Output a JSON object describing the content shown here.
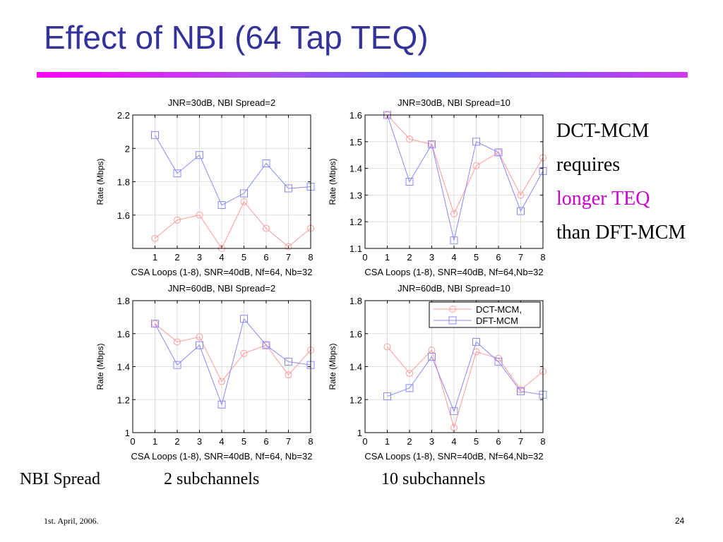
{
  "slide": {
    "title": "Effect of NBI (64 Tap TEQ)",
    "side_text": [
      "DCT-MCM",
      "requires",
      "longer TEQ",
      "than DFT-MCM"
    ],
    "bottom_labels": [
      "NBI Spread",
      "2 subchannels",
      "10 subchannels"
    ],
    "footer_date": "1st. April, 2006.",
    "page_number": "24"
  },
  "colors": {
    "title": "#333399",
    "accent_text": "#cc00cc",
    "dct_series": "#ff9999",
    "dft_series": "#8888ff"
  },
  "chart_data": [
    {
      "type": "line",
      "title": "JNR=30dB, NBI Spread=2",
      "xlabel": "CSA Loops (1-8), SNR=40dB, Nf=64, Nb=32",
      "ylabel": "Rate (Mbps)",
      "x": [
        1,
        2,
        3,
        4,
        5,
        6,
        7,
        8
      ],
      "xlim": [
        0,
        8
      ],
      "ylim": [
        1.4,
        2.2
      ],
      "yticks": [
        1.6,
        1.8,
        2,
        2.2
      ],
      "xticks": [
        1,
        2,
        3,
        4,
        5,
        6,
        7,
        8
      ],
      "grid": true,
      "series": [
        {
          "values": [
            1.46,
            1.57,
            1.6,
            1.4,
            1.68,
            1.52,
            1.41,
            1.52
          ]
        },
        {
          "values": [
            2.08,
            1.85,
            1.96,
            1.66,
            1.73,
            1.91,
            1.76,
            1.77
          ]
        }
      ]
    },
    {
      "type": "line",
      "title": "JNR=30dB, NBI Spread=10",
      "xlabel": "CSA Loops (1-8), SNR=40dB, Nf=64,Nb=32",
      "ylabel": "Rate (Mbps)",
      "x": [
        1,
        2,
        3,
        4,
        5,
        6,
        7,
        8
      ],
      "xlim": [
        0,
        8
      ],
      "ylim": [
        1.1,
        1.6
      ],
      "yticks": [
        1.1,
        1.2,
        1.3,
        1.4,
        1.5,
        1.6
      ],
      "xticks": [
        0,
        1,
        2,
        3,
        4,
        5,
        6,
        7,
        8
      ],
      "grid": true,
      "series": [
        {
          "values": [
            1.6,
            1.51,
            1.49,
            1.23,
            1.41,
            1.46,
            1.3,
            1.44
          ]
        },
        {
          "values": [
            1.6,
            1.35,
            1.49,
            1.13,
            1.5,
            1.46,
            1.24,
            1.39
          ]
        }
      ]
    },
    {
      "type": "line",
      "title": "JNR=60dB, NBI Spread=2",
      "xlabel": "CSA Loops (1-8), SNR=40dB, Nf=64, Nb=32",
      "ylabel": "Rate (Mbps)",
      "x": [
        1,
        2,
        3,
        4,
        5,
        6,
        7,
        8
      ],
      "xlim": [
        0,
        8
      ],
      "ylim": [
        1.0,
        1.8
      ],
      "yticks": [
        1,
        1.2,
        1.4,
        1.6,
        1.8
      ],
      "xticks": [
        0,
        1,
        2,
        3,
        4,
        5,
        6,
        7,
        8
      ],
      "grid": true,
      "series": [
        {
          "values": [
            1.66,
            1.55,
            1.58,
            1.31,
            1.48,
            1.53,
            1.35,
            1.5
          ]
        },
        {
          "values": [
            1.66,
            1.41,
            1.53,
            1.17,
            1.69,
            1.53,
            1.43,
            1.41
          ]
        }
      ]
    },
    {
      "type": "line",
      "title": "JNR=60dB, NBI Spread=10",
      "xlabel": "CSA Loops (1-8), SNR=40dB, Nf=64,Nb=32",
      "ylabel": "Rate (Mbps)",
      "x": [
        1,
        2,
        3,
        4,
        5,
        6,
        7,
        8
      ],
      "xlim": [
        0,
        8
      ],
      "ylim": [
        1.0,
        1.8
      ],
      "yticks": [
        1,
        1.2,
        1.4,
        1.6,
        1.8
      ],
      "xticks": [
        0,
        1,
        2,
        3,
        4,
        5,
        6,
        7,
        8
      ],
      "grid": true,
      "legend": "top-right",
      "series": [
        {
          "name": "DCT-MCM,",
          "values": [
            1.52,
            1.36,
            1.5,
            1.03,
            1.49,
            1.45,
            1.26,
            1.37
          ]
        },
        {
          "name": "DFT-MCM",
          "values": [
            1.22,
            1.27,
            1.46,
            1.13,
            1.55,
            1.43,
            1.25,
            1.23
          ]
        }
      ]
    }
  ]
}
